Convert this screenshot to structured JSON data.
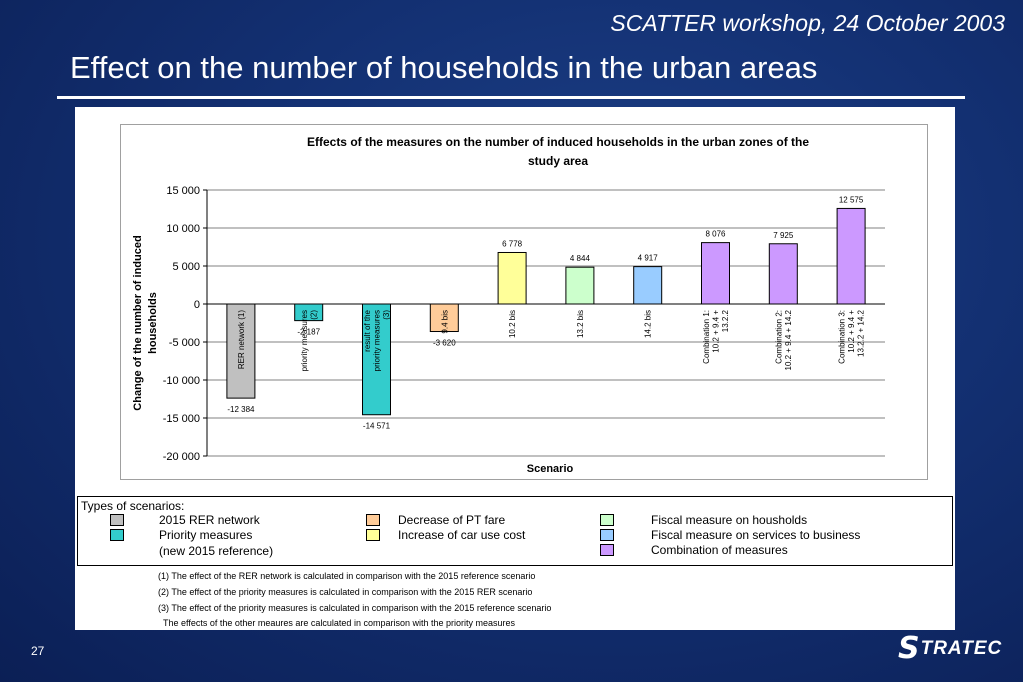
{
  "header": {
    "event": "SCATTER workshop, 24 October 2003",
    "title": "Effect on the number of households in the urban areas"
  },
  "chart_data": {
    "type": "bar",
    "title_line1": "Effects of the measures on the number of induced households in the urban zones of the",
    "title_line2": "study area",
    "xlabel": "Scenario",
    "ylabel_line1": "Change of the number of induced",
    "ylabel_line2": "households",
    "ylim": [
      -20000,
      15000
    ],
    "yticks": [
      15000,
      10000,
      5000,
      0,
      -5000,
      -10000,
      -15000,
      -20000
    ],
    "ytick_labels": [
      "15 000",
      "10 000",
      "5 000",
      "0",
      "-5 000",
      "-10 000",
      "-15 000",
      "-20 000"
    ],
    "grid": true,
    "bars": [
      {
        "label": [
          "RER network (1)"
        ],
        "value": -12384,
        "value_label": "-12 384",
        "color": "#c0c0c0"
      },
      {
        "label": [
          "priority measures",
          "(2)"
        ],
        "value": -2187,
        "value_label": "-2 187",
        "color": "#33cccc"
      },
      {
        "label": [
          "result of the",
          "priority measures",
          "(3)"
        ],
        "value": -14571,
        "value_label": "-14 571",
        "color": "#33cccc"
      },
      {
        "label": [
          "9.4 bis"
        ],
        "value": -3620,
        "value_label": "-3 620",
        "color": "#ffcc99"
      },
      {
        "label": [
          "10.2 bis"
        ],
        "value": 6778,
        "value_label": "6 778",
        "color": "#ffff99"
      },
      {
        "label": [
          "13.2 bis"
        ],
        "value": 4844,
        "value_label": "4 844",
        "color": "#ccffcc"
      },
      {
        "label": [
          "14.2 bis"
        ],
        "value": 4917,
        "value_label": "4 917",
        "color": "#99ccff"
      },
      {
        "label": [
          "Combination 1:",
          "10.2 + 9.4 +",
          "13.2.2"
        ],
        "value": 8076,
        "value_label": "8 076",
        "color": "#cc99ff"
      },
      {
        "label": [
          "Combination 2:",
          "10.2 + 9.4 + 14.2"
        ],
        "value": 7925,
        "value_label": "7 925",
        "color": "#cc99ff"
      },
      {
        "label": [
          "Combination 3:",
          "10.2 + 9.4 +",
          "13.2.2 + 14.2"
        ],
        "value": 12575,
        "value_label": "12 575",
        "color": "#cc99ff"
      }
    ]
  },
  "legend": {
    "heading": "Types of scenarios:",
    "items": [
      {
        "label": "2015 RER network",
        "color": "#c0c0c0"
      },
      {
        "label": "Priority measures",
        "color": "#33cccc"
      },
      {
        "label": "(new 2015 reference)",
        "color": ""
      },
      {
        "label": "Decrease of PT fare",
        "color": "#ffcc99"
      },
      {
        "label": "Increase of car use cost",
        "color": "#ffff99"
      },
      {
        "label": "Fiscal measure on housholds",
        "color": "#ccffcc"
      },
      {
        "label": "Fiscal measure on services to business",
        "color": "#99ccff"
      },
      {
        "label": "Combination of measures",
        "color": "#cc99ff"
      }
    ]
  },
  "footnotes": [
    "(1) The effect of the RER network is calculated in comparison with the 2015 reference scenario",
    "(2) The effect of the priority measures is calculated in comparison with the 2015 RER scenario",
    "(3) The effect of the priority measures is calculated in comparison with the 2015 reference scenario",
    "The effects of the other meaures are calculated in comparison with the priority measures"
  ],
  "footer": {
    "page_number": "27",
    "logo_mark": "S",
    "logo_text": "TRATEC"
  }
}
